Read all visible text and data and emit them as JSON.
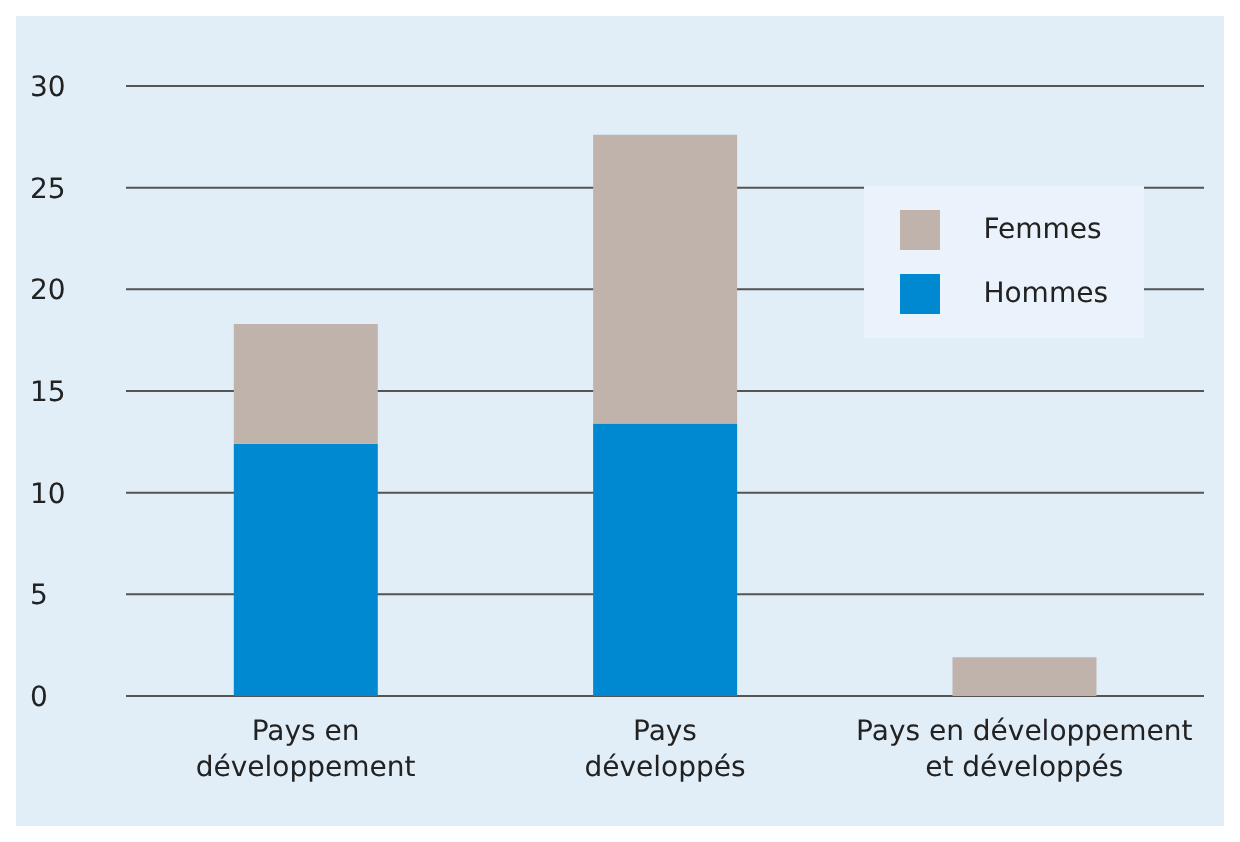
{
  "chart_data": {
    "type": "bar",
    "stacked": true,
    "categories": [
      "Pays en\ndéveloppement",
      "Pays\ndéveloppés",
      "Pays en développement\net développés"
    ],
    "series": [
      {
        "name": "Hommes",
        "color": "#0088d1",
        "values": [
          12.4,
          13.4,
          0
        ]
      },
      {
        "name": "Femmes",
        "color": "#bfb3ab",
        "values": [
          5.9,
          14.2,
          1.9
        ]
      }
    ],
    "ylim": [
      0,
      30
    ],
    "yticks": [
      0,
      5,
      10,
      15,
      20,
      25,
      30
    ],
    "grid": "y",
    "legend": "top right"
  }
}
